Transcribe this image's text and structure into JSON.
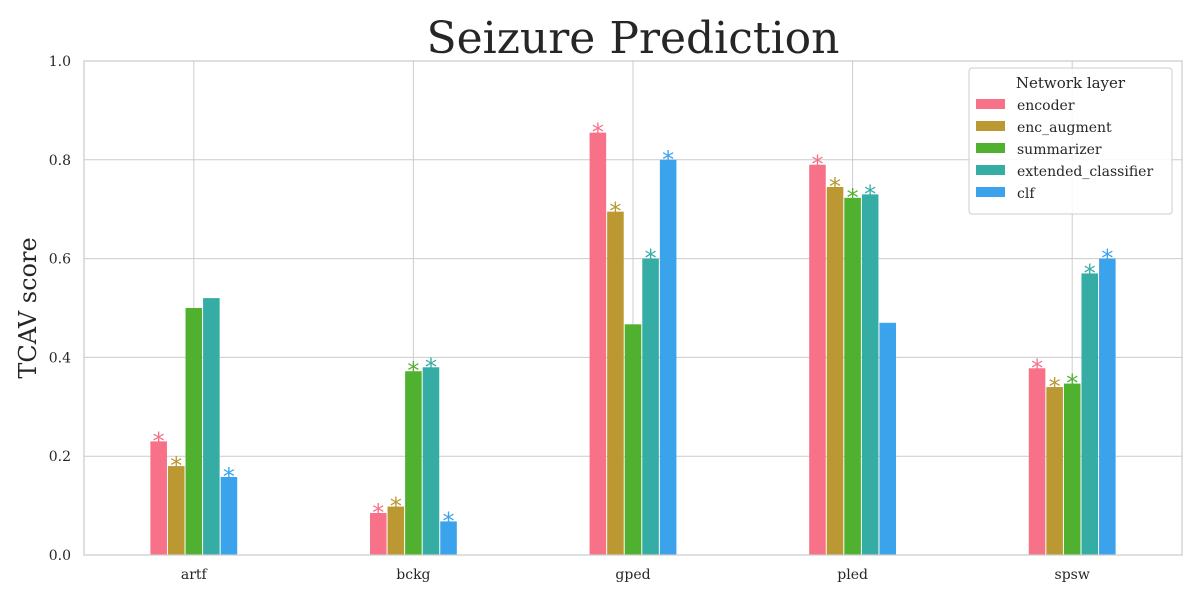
{
  "chart_data": {
    "type": "bar",
    "title": "Seizure Prediction",
    "xlabel": "",
    "ylabel": "TCAV score",
    "ylim": [
      0,
      1.0
    ],
    "yticks": [
      "0.0",
      "0.2",
      "0.4",
      "0.6",
      "0.8",
      "1.0"
    ],
    "categories": [
      "artf",
      "bckg",
      "gped",
      "pled",
      "spsw"
    ],
    "grid": true,
    "legend": {
      "title": "Network layer",
      "placement": "top-right"
    },
    "significance_marker": "*",
    "series": [
      {
        "name": "encoder",
        "color": "#f77189",
        "values": [
          0.23,
          0.085,
          0.855,
          0.79,
          0.378
        ],
        "significant": [
          true,
          true,
          true,
          true,
          true
        ]
      },
      {
        "name": "enc_augment",
        "color": "#bb9832",
        "values": [
          0.18,
          0.098,
          0.695,
          0.745,
          0.34
        ],
        "significant": [
          true,
          true,
          true,
          true,
          true
        ]
      },
      {
        "name": "summarizer",
        "color": "#50b131",
        "values": [
          0.5,
          0.372,
          0.467,
          0.723,
          0.347
        ],
        "significant": [
          false,
          true,
          false,
          true,
          true
        ]
      },
      {
        "name": "extended_classifier",
        "color": "#36ada4",
        "values": [
          0.52,
          0.38,
          0.6,
          0.73,
          0.57
        ],
        "significant": [
          false,
          true,
          true,
          true,
          true
        ]
      },
      {
        "name": "clf",
        "color": "#3ba3ec",
        "values": [
          0.158,
          0.068,
          0.8,
          0.47,
          0.6
        ],
        "significant": [
          true,
          true,
          true,
          false,
          true
        ]
      }
    ]
  }
}
